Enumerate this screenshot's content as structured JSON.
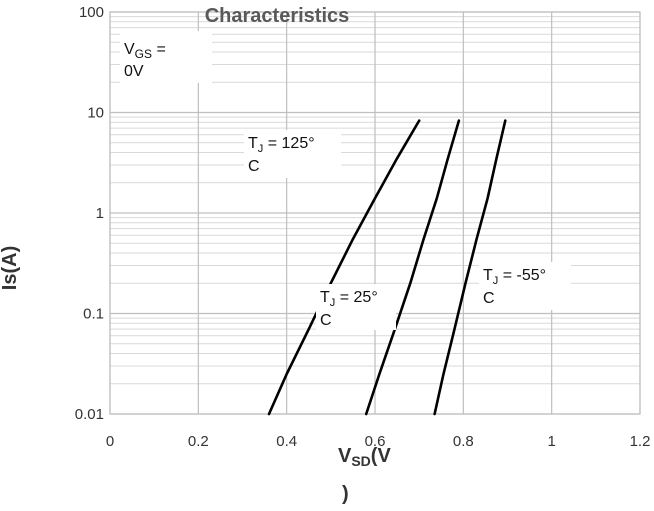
{
  "chart_data": {
    "type": "line",
    "title": "Characteristics",
    "xlabel": "VSD(V)",
    "ylabel": "Is(A)",
    "x_scale": "linear",
    "y_scale": "log",
    "xlim": [
      0,
      1.2
    ],
    "ylim": [
      0.01,
      100
    ],
    "grid": true,
    "legend": "none",
    "x_tick_labels": [
      "0",
      "0.2",
      "0.4",
      "0.6",
      "0.8",
      "1",
      "1.2"
    ],
    "y_tick_labels": [
      "0.01",
      "0.1",
      "1",
      "10",
      "100"
    ],
    "annotations": {
      "condition": "VGS = 0V",
      "t125": "TJ = 125°C",
      "t25": "TJ = 25°C",
      "tm55": "TJ = -55°C"
    },
    "series": [
      {
        "x": [
          0.36,
          0.4,
          0.45,
          0.5,
          0.55,
          0.6,
          0.65,
          0.7
        ],
        "y": [
          0.01,
          0.025,
          0.07,
          0.2,
          0.55,
          1.4,
          3.5,
          8.3
        ]
      },
      {
        "x": [
          0.58,
          0.61,
          0.645,
          0.68,
          0.71,
          0.74,
          0.765,
          0.79
        ],
        "y": [
          0.01,
          0.025,
          0.07,
          0.2,
          0.55,
          1.4,
          3.5,
          8.3
        ]
      },
      {
        "x": [
          0.735,
          0.755,
          0.78,
          0.805,
          0.83,
          0.855,
          0.875,
          0.895
        ],
        "y": [
          0.01,
          0.025,
          0.07,
          0.2,
          0.55,
          1.4,
          3.5,
          8.3
        ]
      }
    ],
    "colors": {
      "curve": "#000000",
      "grid": "#bfbfbf",
      "minor_grid": "#d9d9d9",
      "text": "#333333"
    }
  }
}
